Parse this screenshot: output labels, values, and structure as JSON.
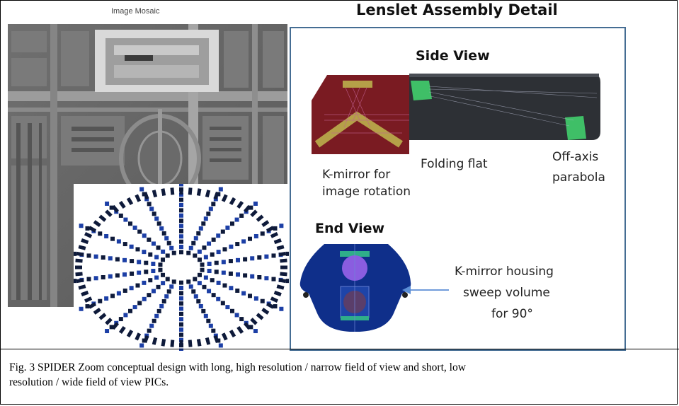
{
  "mosaic": {
    "title": "Image Mosaic"
  },
  "assembly": {
    "title": "Lenslet Assembly Detail",
    "side_view": "Side View",
    "end_view": "End View",
    "label_kmirror_line1": "K-mirror for",
    "label_kmirror_line2": "image rotation",
    "label_folding": "Folding flat",
    "label_offaxis_line1": "Off-axis",
    "label_offaxis_line2": "parabola",
    "label_housing_line1": "K-mirror housing",
    "label_housing_line2": "sweep volume",
    "label_housing_line3": "for 90°"
  },
  "caption": {
    "line1": "Fig. 3 SPIDER  Zoom conceptual design with long, high resolution / narrow field of view and short, low",
    "line2": "resolution / wide field of view PICs."
  },
  "colors": {
    "panel_border": "#456d93",
    "kmirror_box": "#7a1b22",
    "tube": "#2d3035",
    "parabola": "#3fbf67",
    "lens_blue": "#1e44a8",
    "end_view_body": "#0f2f8a",
    "purple": "#8a5de0"
  }
}
